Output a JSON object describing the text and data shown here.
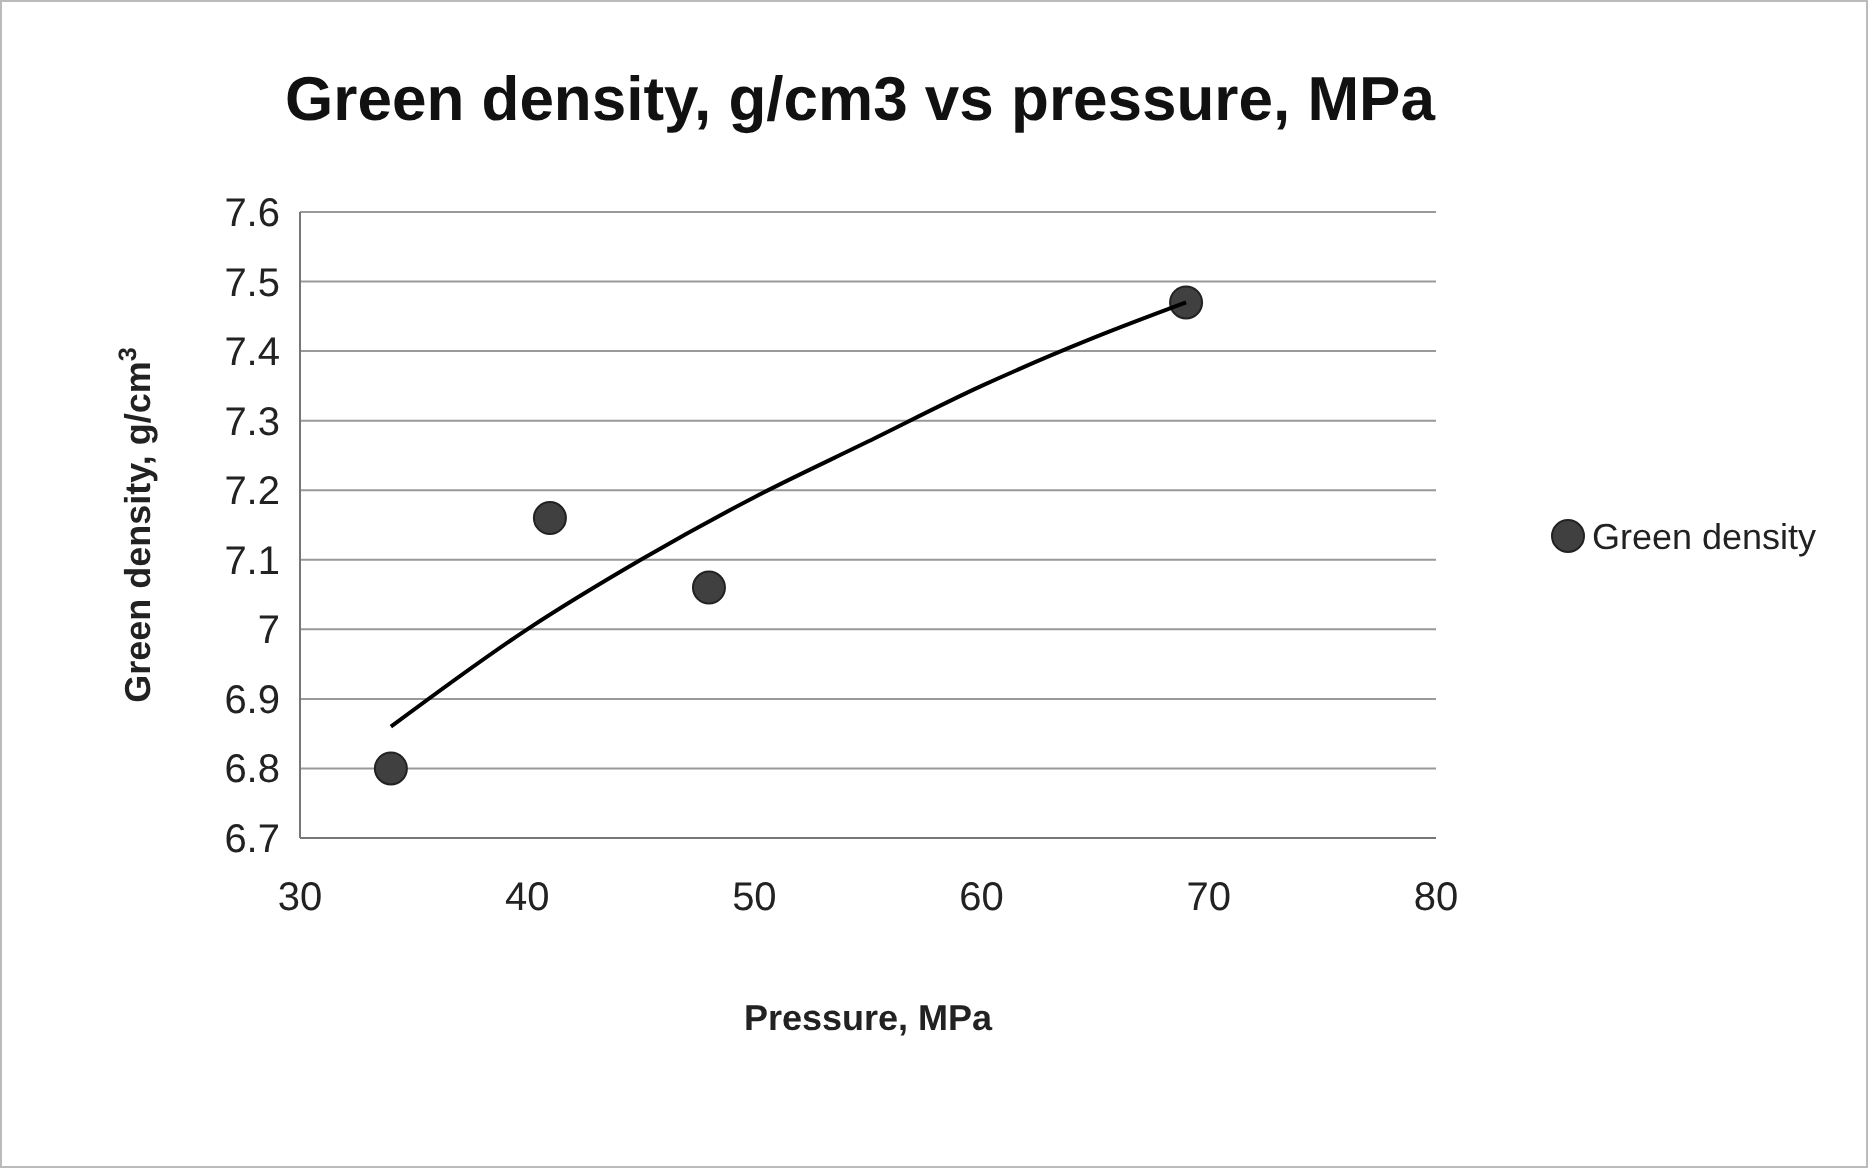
{
  "chart_data": {
    "type": "scatter",
    "title": "Green density, g/cm3 vs pressure, MPa",
    "xlabel": "Pressure, MPa",
    "ylabel": "Green density, g/cm$^{3}$",
    "xlim": [
      30,
      80
    ],
    "xticks": [
      30,
      40,
      50,
      60,
      70,
      80
    ],
    "ylim": [
      6.7,
      7.6
    ],
    "yticks": [
      6.7,
      6.8,
      6.9,
      7,
      7.1,
      7.2,
      7.3,
      7.4,
      7.5,
      7.6
    ],
    "grid": "y",
    "legend": "right",
    "marker": "circle",
    "series": [
      {
        "name": "Green density",
        "color": "#404040",
        "x": [
          34,
          41,
          48,
          69
        ],
        "values": [
          6.8,
          7.16,
          7.06,
          7.47
        ]
      },
      {
        "type": "line",
        "color": "#000000",
        "marker": "none",
        "x": [
          34,
          40,
          45,
          50,
          55,
          60,
          65,
          69
        ],
        "values": [
          6.86,
          7.0,
          7.1,
          7.19,
          7.27,
          7.35,
          7.42,
          7.47
        ]
      }
    ]
  }
}
